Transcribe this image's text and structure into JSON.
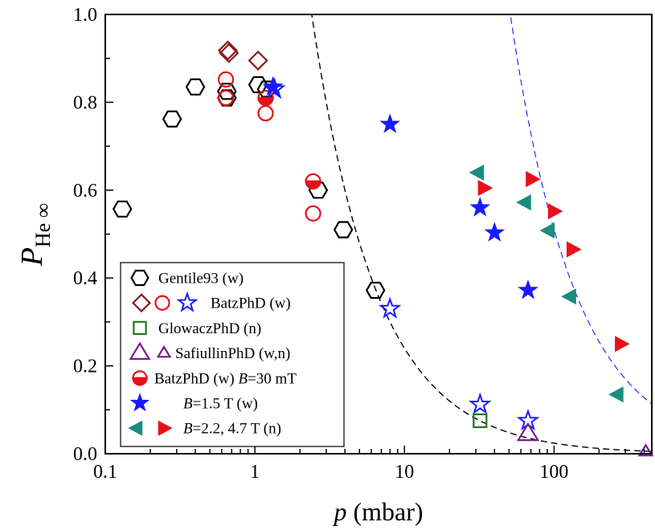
{
  "chart_data": {
    "type": "scatter",
    "xscale": "log",
    "xlim": [
      0.1,
      450
    ],
    "ylim": [
      0.0,
      1.0
    ],
    "xticks": [
      {
        "value": 0.1,
        "label": "0.1"
      },
      {
        "value": 1,
        "label": "1"
      },
      {
        "value": 10,
        "label": "10"
      },
      {
        "value": 100,
        "label": "100"
      }
    ],
    "yticks": [
      {
        "value": 0.0,
        "label": "0.0"
      },
      {
        "value": 0.2,
        "label": "0.2"
      },
      {
        "value": 0.4,
        "label": "0.4"
      },
      {
        "value": 0.6,
        "label": "0.6"
      },
      {
        "value": 0.8,
        "label": "0.8"
      },
      {
        "value": 1.0,
        "label": "1.0"
      }
    ],
    "xlabel": {
      "symbol": "p",
      "unit": " (mbar)"
    },
    "ylabel": {
      "symbol": "P",
      "subscript": "He ∞"
    },
    "legend_position": "bottom-left",
    "colors": {
      "black": "#000000",
      "darkred": "#8b1a1a",
      "red": "#e8101a",
      "blue": "#1a1aff",
      "green": "#1a7a1a",
      "purple": "#7a1a8c",
      "teal": "#1a8c80"
    },
    "series": [
      {
        "marker": "hexagon",
        "color": "black",
        "fill": "none",
        "points": [
          [
            0.13,
            0.557
          ],
          [
            0.28,
            0.762
          ],
          [
            0.4,
            0.835
          ],
          [
            0.65,
            0.825
          ],
          [
            0.65,
            0.81
          ],
          [
            1.05,
            0.84
          ],
          [
            1.2,
            0.83
          ],
          [
            2.65,
            0.6
          ],
          [
            3.9,
            0.51
          ],
          [
            6.4,
            0.372
          ]
        ]
      },
      {
        "marker": "diamond",
        "color": "darkred",
        "fill": "none",
        "points": [
          [
            0.66,
            0.918
          ],
          [
            0.67,
            0.912
          ],
          [
            1.05,
            0.895
          ]
        ]
      },
      {
        "marker": "circle",
        "color": "red",
        "fill": "none",
        "points": [
          [
            0.64,
            0.852
          ],
          [
            0.64,
            0.81
          ],
          [
            1.18,
            0.775
          ],
          [
            2.45,
            0.547
          ]
        ]
      },
      {
        "marker": "star",
        "color": "blue",
        "fill": "none",
        "points": [
          [
            1.35,
            0.83
          ],
          [
            8.0,
            0.33
          ],
          [
            32.0,
            0.112
          ],
          [
            67.0,
            0.075
          ]
        ]
      },
      {
        "marker": "square",
        "color": "green",
        "fill": "none",
        "points": [
          [
            32.0,
            0.075
          ]
        ]
      },
      {
        "marker": "triangle-up",
        "color": "purple",
        "fill": "none",
        "size": 1.25,
        "points": [
          [
            67.0,
            0.045
          ]
        ]
      },
      {
        "marker": "triangle-up",
        "color": "purple",
        "fill": "none",
        "size": 0.8,
        "points": [
          [
            410.0,
            0.005
          ]
        ]
      },
      {
        "marker": "half-circle",
        "color": "red",
        "points": [
          [
            1.18,
            0.81
          ],
          [
            2.45,
            0.62
          ]
        ]
      },
      {
        "marker": "star",
        "color": "blue",
        "fill": "solid",
        "points": [
          [
            1.32,
            0.835
          ],
          [
            8.0,
            0.75
          ],
          [
            32.0,
            0.56
          ],
          [
            40.0,
            0.503
          ],
          [
            67.0,
            0.372
          ]
        ]
      },
      {
        "marker": "triangle-left",
        "color": "teal",
        "fill": "solid",
        "points": [
          [
            31.0,
            0.64
          ],
          [
            64.0,
            0.572
          ],
          [
            92.0,
            0.508
          ],
          [
            128.0,
            0.358
          ],
          [
            265.0,
            0.135
          ]
        ]
      },
      {
        "marker": "triangle-right",
        "color": "red",
        "fill": "solid",
        "points": [
          [
            34.0,
            0.605
          ],
          [
            71.0,
            0.625
          ],
          [
            100.0,
            0.552
          ],
          [
            133.0,
            0.465
          ],
          [
            280.0,
            0.25
          ]
        ]
      }
    ],
    "curves": [
      {
        "color": "black",
        "style": "dashed",
        "func": "k/x",
        "k": 2.4
      },
      {
        "color": "blue",
        "style": "dashed",
        "func": "k/x",
        "k": 51
      }
    ],
    "legend": [
      {
        "markers": [
          {
            "marker": "hexagon",
            "color": "black",
            "fill": "none"
          }
        ],
        "runs": [
          {
            "text": "Gentile93 (w)"
          }
        ]
      },
      {
        "markers": [
          {
            "marker": "diamond",
            "color": "darkred",
            "fill": "none"
          },
          {
            "marker": "circle",
            "color": "red",
            "fill": "none"
          },
          {
            "marker": "star",
            "color": "blue",
            "fill": "none"
          }
        ],
        "runs": [
          {
            "text": "BatzPhD (w)"
          }
        ]
      },
      {
        "markers": [
          {
            "marker": "square",
            "color": "green",
            "fill": "none"
          }
        ],
        "runs": [
          {
            "text": "GlowaczPhD (n)"
          }
        ]
      },
      {
        "markers": [
          {
            "marker": "triangle-up",
            "color": "purple",
            "fill": "none",
            "size": 1.25
          },
          {
            "marker": "triangle-up",
            "color": "purple",
            "fill": "none",
            "size": 0.8
          }
        ],
        "runs": [
          {
            "text": "SafiullinPhD (w,n)"
          }
        ]
      },
      {
        "markers": [
          {
            "marker": "half-circle",
            "color": "red"
          }
        ],
        "runs": [
          {
            "text": "BatzPhD (w) "
          },
          {
            "text": "B",
            "italic": true
          },
          {
            "text": "=30 mT"
          }
        ]
      },
      {
        "markers": [
          {
            "marker": "star",
            "color": "blue",
            "fill": "solid"
          }
        ],
        "runs": [
          {
            "text": "B",
            "italic": true
          },
          {
            "text": "=1.5 T (w)"
          }
        ]
      },
      {
        "markers": [
          {
            "marker": "triangle-left",
            "color": "teal",
            "fill": "solid"
          },
          {
            "marker": "triangle-right",
            "color": "red",
            "fill": "solid"
          }
        ],
        "runs": [
          {
            "text": "B",
            "italic": true
          },
          {
            "text": "=2.2, 4.7 T (n)"
          }
        ]
      }
    ]
  }
}
